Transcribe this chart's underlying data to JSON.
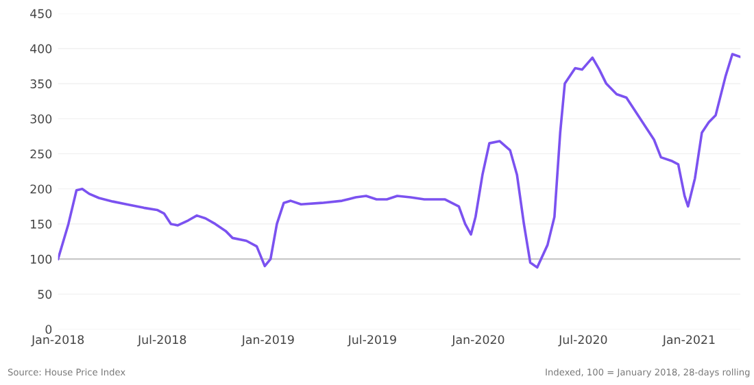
{
  "chart_data": {
    "type": "line",
    "color": "#7b52f0",
    "x": [
      "2018-01-01",
      "2018-01-19",
      "2018-02-02",
      "2018-02-12",
      "2018-02-24",
      "2018-03-13",
      "2018-04-06",
      "2018-04-30",
      "2018-05-30",
      "2018-06-22",
      "2018-07-04",
      "2018-07-16",
      "2018-07-28",
      "2018-08-15",
      "2018-08-30",
      "2018-09-14",
      "2018-10-01",
      "2018-10-19",
      "2018-10-31",
      "2018-11-24",
      "2018-12-12",
      "2018-12-26",
      "2019-01-05",
      "2019-01-16",
      "2019-01-28",
      "2019-02-09",
      "2019-02-27",
      "2019-04-04",
      "2019-05-09",
      "2019-06-02",
      "2019-06-20",
      "2019-07-08",
      "2019-07-26",
      "2019-08-13",
      "2019-09-05",
      "2019-09-29",
      "2019-11-04",
      "2019-11-28",
      "2019-12-09",
      "2019-12-19",
      "2019-12-27",
      "2020-01-08",
      "2020-01-20",
      "2020-02-07",
      "2020-02-25",
      "2020-03-08",
      "2020-03-20",
      "2020-03-31",
      "2020-04-12",
      "2020-04-30",
      "2020-05-12",
      "2020-05-22",
      "2020-05-30",
      "2020-06-17",
      "2020-06-29",
      "2020-07-17",
      "2020-07-29",
      "2020-08-10",
      "2020-08-28",
      "2020-09-14",
      "2020-10-08",
      "2020-11-01",
      "2020-11-13",
      "2020-12-01",
      "2020-12-13",
      "2020-12-24",
      "2020-12-30",
      "2021-01-11",
      "2021-01-23",
      "2021-02-04",
      "2021-02-16",
      "2021-03-05",
      "2021-03-17",
      "2021-03-31"
    ],
    "values": [
      100,
      150,
      198,
      200,
      193,
      187,
      182,
      178,
      173,
      170,
      165,
      150,
      148,
      155,
      162,
      158,
      150,
      140,
      130,
      126,
      118,
      90,
      100,
      150,
      180,
      183,
      178,
      180,
      183,
      188,
      190,
      185,
      185,
      190,
      188,
      185,
      185,
      175,
      150,
      135,
      160,
      220,
      265,
      268,
      255,
      220,
      150,
      95,
      88,
      120,
      160,
      280,
      350,
      372,
      370,
      387,
      370,
      350,
      335,
      330,
      300,
      270,
      245,
      240,
      235,
      190,
      175,
      215,
      280,
      295,
      305,
      360,
      392,
      388
    ],
    "xlim": [
      "2018-01-01",
      "2021-03-31"
    ],
    "xticks": [
      {
        "value": "2018-01-01",
        "label": "Jan-2018"
      },
      {
        "value": "2018-07-01",
        "label": "Jul-2018"
      },
      {
        "value": "2019-01-01",
        "label": "Jan-2019"
      },
      {
        "value": "2019-07-01",
        "label": "Jul-2019"
      },
      {
        "value": "2020-01-01",
        "label": "Jan-2020"
      },
      {
        "value": "2020-07-01",
        "label": "Jul-2020"
      },
      {
        "value": "2021-01-01",
        "label": "Jan-2021"
      }
    ],
    "ylim": [
      0,
      450
    ],
    "yticks": [
      0,
      50,
      100,
      150,
      200,
      250,
      300,
      350,
      400,
      450
    ],
    "grid": "y",
    "legend": false,
    "marker": "none",
    "line_style": "solid",
    "ref_lines": [
      {
        "axis": "y",
        "value": 100,
        "color": "#c8c8c8"
      }
    ],
    "annotations": [
      "Source: House Price Index",
      "Indexed, 100 = January 2018, 28-days rolling"
    ]
  }
}
